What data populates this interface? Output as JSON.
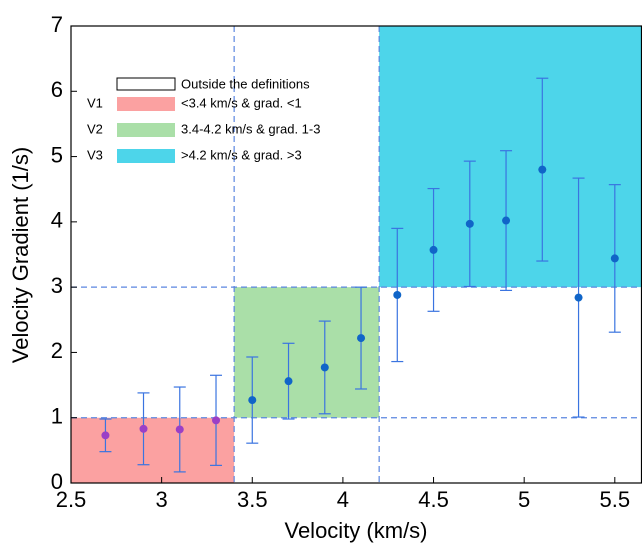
{
  "chart_data": {
    "type": "errorbar-scatter",
    "x_label": "Velocity (km/s)",
    "y_label": "Velocity Gradient (1/s)",
    "xlim": [
      2.5,
      5.65
    ],
    "ylim": [
      0,
      7
    ],
    "xticks": [
      2.5,
      3,
      3.5,
      4,
      4.5,
      5,
      5.5
    ],
    "yticks": [
      0,
      1,
      2,
      3,
      4,
      5,
      6,
      7
    ],
    "outside_label": "Outside the definitions",
    "regions": [
      {
        "name": "V1",
        "label": "<3.4 km/s & grad. <1",
        "color": "#fba1a1",
        "x": [
          2.5,
          3.4
        ],
        "y": [
          0,
          1
        ]
      },
      {
        "name": "V2",
        "label": "3.4-4.2 km/s & grad. 1-3",
        "color": "#aadfa8",
        "x": [
          3.4,
          4.2
        ],
        "y": [
          1,
          3
        ]
      },
      {
        "name": "V3",
        "label": ">4.2 km/s & grad. >3",
        "color": "#4dd5ea",
        "x": [
          4.2,
          5.65
        ],
        "y": [
          3,
          7
        ]
      }
    ],
    "guides": {
      "x": [
        3.4,
        4.2
      ],
      "y": [
        1,
        3
      ],
      "color": "#5b86e0"
    },
    "error_color": "#3a74e0",
    "series": [
      {
        "color": "#9b3fc6",
        "x": [
          2.69,
          2.9,
          3.1,
          3.3
        ],
        "values": [
          0.73,
          0.83,
          0.82,
          0.96
        ],
        "errors": [
          0.25,
          0.55,
          0.65,
          0.69
        ]
      },
      {
        "color": "#1065c8",
        "x": [
          3.5,
          3.7,
          3.9,
          4.1,
          4.3,
          4.5,
          4.7,
          4.9,
          5.1,
          5.3,
          5.5
        ],
        "values": [
          1.27,
          1.56,
          1.77,
          2.22,
          2.88,
          3.57,
          3.97,
          4.02,
          4.8,
          2.84,
          3.44
        ],
        "errors": [
          0.66,
          0.58,
          0.71,
          0.78,
          1.02,
          0.94,
          0.96,
          1.07,
          1.4,
          1.83,
          1.13
        ]
      }
    ]
  }
}
